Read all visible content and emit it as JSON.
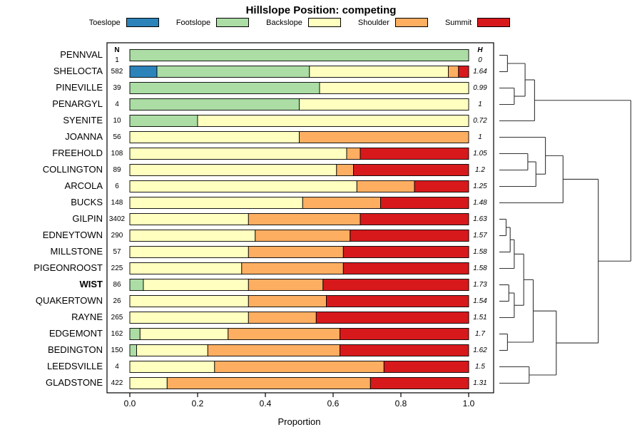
{
  "chart_data": {
    "type": "bar",
    "stacked": true,
    "orientation": "horizontal",
    "title": "Hillslope Position: competing",
    "xlabel": "Proportion",
    "xlim": [
      0,
      1
    ],
    "x_ticks": [
      0.0,
      0.2,
      0.4,
      0.6,
      0.8,
      1.0
    ],
    "x_tick_labels": [
      "0.0",
      "0.2",
      "0.4",
      "0.6",
      "0.8",
      "1.0"
    ],
    "legend_position": "top",
    "grid": false,
    "columns": {
      "n_header": "N",
      "h_header": "H"
    },
    "legend": [
      {
        "label": "Toeslope",
        "color": "#2B83BA"
      },
      {
        "label": "Footslope",
        "color": "#ABDDA4"
      },
      {
        "label": "Backslope",
        "color": "#FFFFBF"
      },
      {
        "label": "Shoulder",
        "color": "#FDAE61"
      },
      {
        "label": "Summit",
        "color": "#D7191C"
      }
    ],
    "rows": [
      {
        "name": "PENNVAL",
        "n": 1,
        "h": "0",
        "bold": false,
        "values": [
          0,
          1,
          0,
          0,
          0
        ]
      },
      {
        "name": "SHELOCTA",
        "n": 582,
        "h": "1.64",
        "bold": false,
        "values": [
          0.08,
          0.45,
          0.41,
          0.03,
          0.03
        ]
      },
      {
        "name": "PINEVILLE",
        "n": 39,
        "h": "0.99",
        "bold": false,
        "values": [
          0,
          0.56,
          0.44,
          0,
          0
        ]
      },
      {
        "name": "PENARGYL",
        "n": 4,
        "h": "1",
        "bold": false,
        "values": [
          0,
          0.5,
          0.5,
          0,
          0
        ]
      },
      {
        "name": "SYENITE",
        "n": 10,
        "h": "0.72",
        "bold": false,
        "values": [
          0,
          0.2,
          0.8,
          0,
          0
        ]
      },
      {
        "name": "JOANNA",
        "n": 56,
        "h": "1",
        "bold": false,
        "values": [
          0,
          0,
          0.5,
          0.5,
          0
        ]
      },
      {
        "name": "FREEHOLD",
        "n": 108,
        "h": "1.05",
        "bold": false,
        "values": [
          0,
          0,
          0.64,
          0.04,
          0.32
        ]
      },
      {
        "name": "COLLINGTON",
        "n": 89,
        "h": "1.2",
        "bold": false,
        "values": [
          0,
          0,
          0.61,
          0.05,
          0.34
        ]
      },
      {
        "name": "ARCOLA",
        "n": 6,
        "h": "1.25",
        "bold": false,
        "values": [
          0,
          0,
          0.67,
          0.17,
          0.16
        ]
      },
      {
        "name": "BUCKS",
        "n": 148,
        "h": "1.48",
        "bold": false,
        "values": [
          0,
          0,
          0.51,
          0.23,
          0.26
        ]
      },
      {
        "name": "GILPIN",
        "n": 3402,
        "h": "1.63",
        "bold": false,
        "values": [
          0,
          0,
          0.35,
          0.33,
          0.32
        ]
      },
      {
        "name": "EDNEYTOWN",
        "n": 290,
        "h": "1.57",
        "bold": false,
        "values": [
          0,
          0,
          0.37,
          0.28,
          0.35
        ]
      },
      {
        "name": "MILLSTONE",
        "n": 57,
        "h": "1.58",
        "bold": false,
        "values": [
          0,
          0,
          0.35,
          0.28,
          0.37
        ]
      },
      {
        "name": "PIGEONROOST",
        "n": 225,
        "h": "1.58",
        "bold": false,
        "values": [
          0,
          0,
          0.33,
          0.3,
          0.37
        ]
      },
      {
        "name": "WIST",
        "n": 86,
        "h": "1.73",
        "bold": true,
        "values": [
          0,
          0.04,
          0.31,
          0.22,
          0.43
        ]
      },
      {
        "name": "QUAKERTOWN",
        "n": 26,
        "h": "1.54",
        "bold": false,
        "values": [
          0,
          0,
          0.35,
          0.23,
          0.42
        ]
      },
      {
        "name": "RAYNE",
        "n": 265,
        "h": "1.51",
        "bold": false,
        "values": [
          0,
          0,
          0.35,
          0.2,
          0.45
        ]
      },
      {
        "name": "EDGEMONT",
        "n": 162,
        "h": "1.7",
        "bold": false,
        "values": [
          0,
          0.03,
          0.26,
          0.33,
          0.38
        ]
      },
      {
        "name": "BEDINGTON",
        "n": 150,
        "h": "1.62",
        "bold": false,
        "values": [
          0,
          0.02,
          0.21,
          0.39,
          0.38
        ]
      },
      {
        "name": "LEEDSVILLE",
        "n": 4,
        "h": "1.5",
        "bold": false,
        "values": [
          0,
          0,
          0.25,
          0.5,
          0.25
        ]
      },
      {
        "name": "GLADSTONE",
        "n": 422,
        "h": "1.31",
        "bold": false,
        "values": [
          0,
          0,
          0.11,
          0.6,
          0.29
        ]
      }
    ],
    "dendrogram": {
      "h": 0.97,
      "c": [
        {
          "h": 0.26,
          "c": [
            {
              "h": 0.19,
              "c": [
                {
                  "h": 0.06,
                  "c": [
                    {
                      "l": 0
                    },
                    {
                      "l": 1
                    }
                  ]
                },
                {
                  "h": 0.11,
                  "c": [
                    {
                      "l": 2
                    },
                    {
                      "l": 3
                    }
                  ]
                }
              ]
            },
            {
              "l": 4
            }
          ]
        },
        {
          "h": 0.73,
          "c": [
            {
              "h": 0.47,
              "c": [
                {
                  "h": 0.34,
                  "c": [
                    {
                      "l": 5
                    },
                    {
                      "h": 0.27,
                      "c": [
                        {
                          "h": 0.21,
                          "c": [
                            {
                              "l": 6
                            },
                            {
                              "l": 7
                            }
                          ]
                        },
                        {
                          "l": 8
                        }
                      ]
                    }
                  ]
                },
                {
                  "l": 9
                }
              ]
            },
            {
              "h": 0.42,
              "c": [
                {
                  "h": 0.25,
                  "c": [
                    {
                      "h": 0.18,
                      "c": [
                        {
                          "h": 0.11,
                          "c": [
                            {
                              "h": 0.08,
                              "c": [
                                {
                                  "h": 0.05,
                                  "c": [
                                    {
                                      "l": 10
                                    },
                                    {
                                      "l": 11
                                    }
                                  ]
                                },
                                {
                                  "l": 12
                                }
                              ]
                            },
                            {
                              "l": 13
                            }
                          ]
                        },
                        {
                          "h": 0.11,
                          "c": [
                            {
                              "h": 0.07,
                              "c": [
                                {
                                  "l": 14
                                },
                                {
                                  "l": 15
                                }
                              ]
                            },
                            {
                              "l": 16
                            }
                          ]
                        }
                      ]
                    },
                    {
                      "h": 0.06,
                      "c": [
                        {
                          "l": 17
                        },
                        {
                          "l": 18
                        }
                      ]
                    }
                  ]
                },
                {
                  "h": 0.22,
                  "c": [
                    {
                      "l": 19
                    },
                    {
                      "l": 20
                    }
                  ]
                }
              ]
            }
          ]
        }
      ]
    }
  }
}
